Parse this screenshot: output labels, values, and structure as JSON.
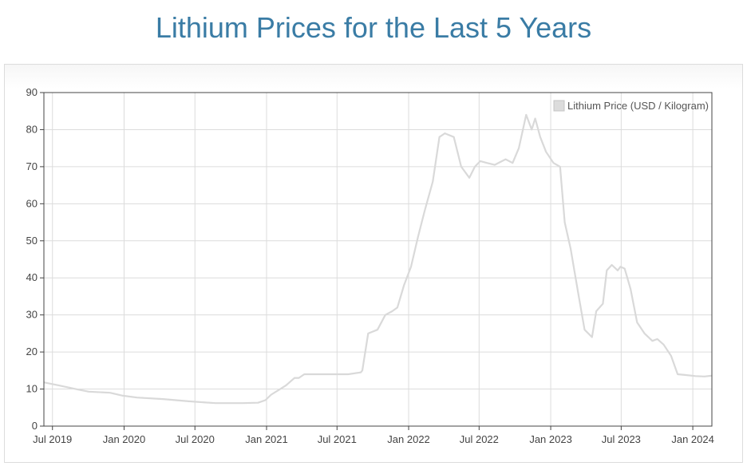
{
  "page": {
    "title": "Lithium Prices for the Last 5 Years"
  },
  "chart_data": {
    "type": "line",
    "title": "Lithium Prices for the Last 5 Years",
    "xlabel": "",
    "ylabel": "",
    "x_range": [
      "2019-06-09",
      "2024-02-19"
    ],
    "ylim": [
      0,
      90
    ],
    "y_ticks": [
      0,
      10,
      20,
      30,
      40,
      50,
      60,
      70,
      80,
      90
    ],
    "x_ticks": [
      {
        "date": "2019-07-01",
        "label": "Jul 2019"
      },
      {
        "date": "2020-01-01",
        "label": "Jan 2020"
      },
      {
        "date": "2020-07-01",
        "label": "Jul 2020"
      },
      {
        "date": "2021-01-01",
        "label": "Jan 2021"
      },
      {
        "date": "2021-07-01",
        "label": "Jul 2021"
      },
      {
        "date": "2022-01-01",
        "label": "Jan 2022"
      },
      {
        "date": "2022-07-01",
        "label": "Jul 2022"
      },
      {
        "date": "2023-01-01",
        "label": "Jan 2023"
      },
      {
        "date": "2023-07-01",
        "label": "Jul 2023"
      },
      {
        "date": "2024-01-01",
        "label": "Jan 2024"
      }
    ],
    "grid": true,
    "legend_position": "top-right",
    "series": [
      {
        "name": "Lithium Price (USD / Kilogram)",
        "color": "#d9d9d9",
        "x": [
          "2019-06-09",
          "2019-07-17",
          "2019-08-30",
          "2019-10-02",
          "2019-11-26",
          "2019-12-29",
          "2020-02-03",
          "2020-04-10",
          "2020-06-15",
          "2020-08-23",
          "2020-10-31",
          "2020-12-10",
          "2020-12-29",
          "2021-01-13",
          "2021-02-05",
          "2021-02-20",
          "2021-03-14",
          "2021-03-25",
          "2021-04-08",
          "2021-05-09",
          "2021-06-20",
          "2021-07-30",
          "2021-08-31",
          "2021-09-04",
          "2021-09-19",
          "2021-10-13",
          "2021-11-02",
          "2021-11-20",
          "2021-12-03",
          "2021-12-20",
          "2022-01-07",
          "2022-01-25",
          "2022-02-11",
          "2022-03-04",
          "2022-03-21",
          "2022-04-04",
          "2022-04-27",
          "2022-05-16",
          "2022-06-06",
          "2022-06-20",
          "2022-07-04",
          "2022-07-21",
          "2022-08-10",
          "2022-08-29",
          "2022-09-07",
          "2022-09-25",
          "2022-10-11",
          "2022-10-30",
          "2022-11-13",
          "2022-11-22",
          "2022-12-05",
          "2022-12-20",
          "2023-01-08",
          "2023-01-25",
          "2023-02-06",
          "2023-02-21",
          "2023-03-14",
          "2023-03-29",
          "2023-04-17",
          "2023-04-28",
          "2023-05-15",
          "2023-05-25",
          "2023-06-07",
          "2023-06-22",
          "2023-06-29",
          "2023-07-10",
          "2023-07-25",
          "2023-08-11",
          "2023-08-30",
          "2023-09-19",
          "2023-10-02",
          "2023-10-18",
          "2023-11-06",
          "2023-11-23",
          "2023-12-12",
          "2024-01-08",
          "2024-01-31",
          "2024-02-19"
        ],
        "values": [
          11.8,
          11.0,
          10.0,
          9.3,
          9.0,
          8.2,
          7.7,
          7.3,
          6.7,
          6.2,
          6.2,
          6.3,
          7.0,
          8.5,
          10.0,
          11.0,
          13.0,
          13.0,
          14.0,
          14.0,
          14.0,
          14.0,
          14.5,
          15.0,
          25.0,
          26.0,
          30.0,
          31.0,
          32.0,
          38.0,
          43.0,
          51.0,
          58.0,
          66.0,
          78.0,
          79.0,
          78.0,
          70.0,
          67.0,
          70.0,
          71.5,
          71.0,
          70.5,
          71.5,
          72.0,
          71.0,
          75.0,
          84.0,
          80.0,
          83.0,
          78.0,
          74.0,
          71.0,
          70.0,
          55.0,
          48.0,
          35.0,
          26.0,
          24.0,
          31.0,
          33.0,
          42.0,
          43.5,
          42.0,
          43.0,
          42.5,
          37.0,
          28.0,
          25.0,
          23.0,
          23.5,
          22.0,
          19.0,
          14.0,
          13.8,
          13.5,
          13.4,
          13.6
        ]
      }
    ]
  }
}
